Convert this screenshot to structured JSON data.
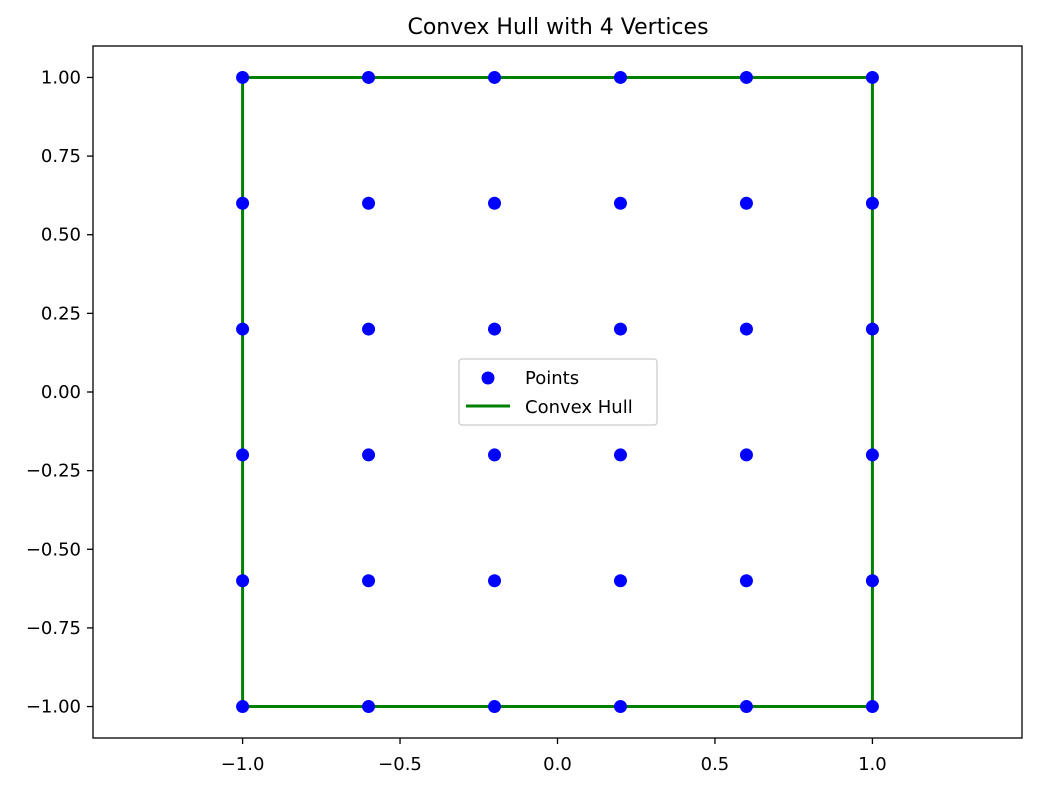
{
  "chart_data": {
    "type": "scatter",
    "title": "Convex Hull with 4 Vertices",
    "xlabel": "",
    "ylabel": "",
    "xlim": [
      -1.475,
      1.475
    ],
    "ylim": [
      -1.1,
      1.1
    ],
    "x_ticks": [
      -1.0,
      -0.5,
      0.0,
      0.5,
      1.0
    ],
    "x_tick_labels": [
      "−1.0",
      "−0.5",
      "0.0",
      "0.5",
      "1.0"
    ],
    "y_ticks": [
      1.0,
      0.75,
      0.5,
      0.25,
      0.0,
      -0.25,
      -0.5,
      -0.75,
      -1.0
    ],
    "y_tick_labels": [
      "1.00",
      "0.75",
      "0.50",
      "0.25",
      "0.00",
      "−0.25",
      "−0.50",
      "−0.75",
      "−1.00"
    ],
    "grid": false,
    "legend_placement": "center",
    "points": {
      "name": "Points",
      "color": "#0000ff",
      "x_values": [
        -1.0,
        -0.6,
        -0.2,
        0.2,
        0.6,
        1.0
      ],
      "y_values": [
        1.0,
        0.6,
        0.2,
        -0.2,
        -0.6,
        -1.0
      ]
    },
    "hull": {
      "name": "Convex Hull",
      "color": "#008000",
      "vertices": [
        [
          -1.0,
          -1.0
        ],
        [
          1.0,
          -1.0
        ],
        [
          1.0,
          1.0
        ],
        [
          -1.0,
          1.0
        ]
      ]
    }
  }
}
